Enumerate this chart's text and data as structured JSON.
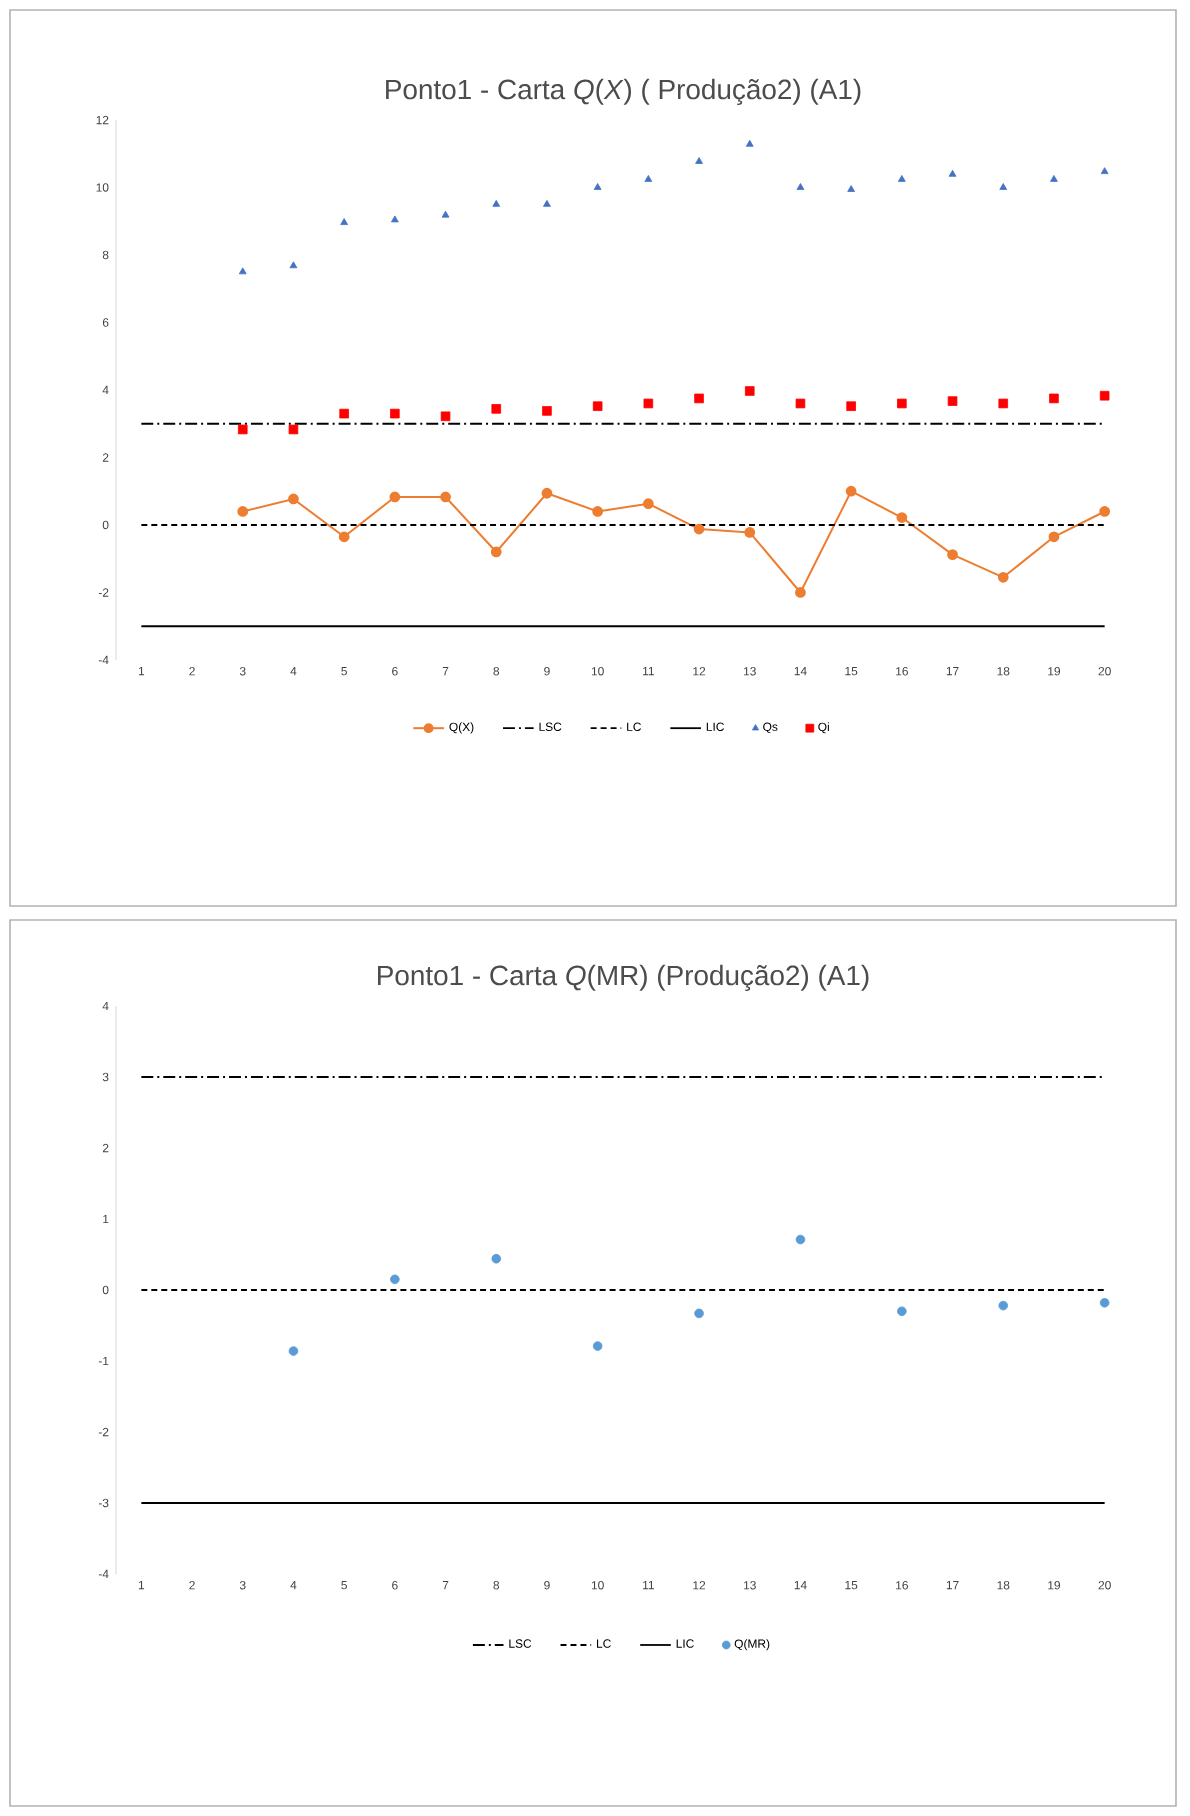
{
  "chart_data": [
    {
      "type": "line",
      "title": "Ponto1 - Carta *Q*(*X*) ( Produção2) (A1)",
      "categories": [
        "1",
        "2",
        "3",
        "4",
        "5",
        "6",
        "7",
        "8",
        "9",
        "10",
        "11",
        "12",
        "13",
        "14",
        "15",
        "16",
        "17",
        "18",
        "19",
        "20"
      ],
      "ylim": [
        -4,
        12
      ],
      "yticks": [
        -4,
        -2,
        0,
        2,
        4,
        6,
        8,
        10,
        12
      ],
      "legend": "bottom",
      "series": [
        {
          "name": "Q(X)",
          "type": "line",
          "color": "#ed7d31",
          "marker": "circle",
          "line_style": "solid",
          "values": [
            null,
            null,
            0.4,
            0.77,
            -0.35,
            0.83,
            0.83,
            -0.8,
            0.94,
            0.4,
            0.63,
            -0.12,
            -0.22,
            -2.0,
            1.0,
            0.22,
            -0.88,
            -1.55,
            -0.35,
            0.4
          ]
        },
        {
          "name": "LSC",
          "type": "line",
          "color": "#000000",
          "marker": "none",
          "line_style": "dashdot",
          "values": [
            3,
            3,
            3,
            3,
            3,
            3,
            3,
            3,
            3,
            3,
            3,
            3,
            3,
            3,
            3,
            3,
            3,
            3,
            3,
            3
          ]
        },
        {
          "name": "LC",
          "type": "line",
          "color": "#000000",
          "marker": "none",
          "line_style": "dashed",
          "values": [
            0,
            0,
            0,
            0,
            0,
            0,
            0,
            0,
            0,
            0,
            0,
            0,
            0,
            0,
            0,
            0,
            0,
            0,
            0,
            0
          ]
        },
        {
          "name": "LIC",
          "type": "line",
          "color": "#000000",
          "marker": "none",
          "line_style": "solid",
          "values": [
            -3,
            -3,
            -3,
            -3,
            -3,
            -3,
            -3,
            -3,
            -3,
            -3,
            -3,
            -3,
            -3,
            -3,
            -3,
            -3,
            -3,
            -3,
            -3,
            -3
          ]
        },
        {
          "name": "Qs",
          "type": "scatter",
          "color": "#4472c4",
          "marker": "triangle",
          "values": [
            null,
            null,
            7.5,
            7.68,
            8.96,
            9.04,
            9.18,
            9.5,
            9.5,
            10.0,
            10.24,
            10.77,
            11.28,
            10.0,
            9.94,
            10.24,
            10.39,
            10.0,
            10.24,
            10.47
          ]
        },
        {
          "name": "Qi",
          "type": "scatter",
          "color": "#ff0000",
          "marker": "square",
          "values": [
            null,
            null,
            2.83,
            2.83,
            3.3,
            3.3,
            3.22,
            3.44,
            3.38,
            3.52,
            3.6,
            3.75,
            3.97,
            3.6,
            3.52,
            3.6,
            3.67,
            3.6,
            3.75,
            3.83
          ]
        }
      ]
    },
    {
      "type": "line",
      "title": "Ponto1 - Carta *Q*(MR) (Produção2) (A1)",
      "categories": [
        "1",
        "2",
        "3",
        "4",
        "5",
        "6",
        "7",
        "8",
        "9",
        "10",
        "11",
        "12",
        "13",
        "14",
        "15",
        "16",
        "17",
        "18",
        "19",
        "20"
      ],
      "ylim": [
        -4,
        4
      ],
      "yticks": [
        -4,
        -3,
        -2,
        -1,
        0,
        1,
        2,
        3,
        4
      ],
      "legend": "bottom",
      "series": [
        {
          "name": "LSC",
          "type": "line",
          "color": "#000000",
          "marker": "none",
          "line_style": "dashdot",
          "values": [
            3,
            3,
            3,
            3,
            3,
            3,
            3,
            3,
            3,
            3,
            3,
            3,
            3,
            3,
            3,
            3,
            3,
            3,
            3,
            3
          ]
        },
        {
          "name": "LC",
          "type": "line",
          "color": "#000000",
          "marker": "none",
          "line_style": "dashed",
          "values": [
            0,
            0,
            0,
            0,
            0,
            0,
            0,
            0,
            0,
            0,
            0,
            0,
            0,
            0,
            0,
            0,
            0,
            0,
            0,
            0
          ]
        },
        {
          "name": "LIC",
          "type": "line",
          "color": "#000000",
          "marker": "none",
          "line_style": "solid",
          "values": [
            -3,
            -3,
            -3,
            -3,
            -3,
            -3,
            -3,
            -3,
            -3,
            -3,
            -3,
            -3,
            -3,
            -3,
            -3,
            -3,
            -3,
            -3,
            -3,
            -3
          ]
        },
        {
          "name": "Q(MR)",
          "type": "scatter",
          "color": "#5b9bd5",
          "marker": "circle",
          "values": [
            null,
            null,
            null,
            -0.86,
            null,
            0.15,
            null,
            0.44,
            null,
            -0.79,
            null,
            -0.33,
            null,
            0.71,
            null,
            -0.3,
            null,
            -0.22,
            null,
            -0.18
          ]
        }
      ]
    }
  ]
}
